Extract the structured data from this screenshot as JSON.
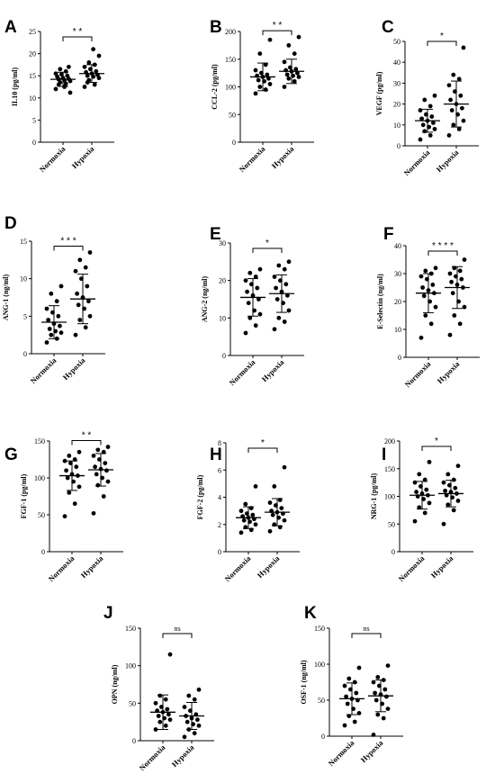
{
  "chart_data": [
    {
      "panel": "A",
      "type": "scatter",
      "ylabel": "IL10 (pg/ml)",
      "ylim": [
        0,
        25
      ],
      "yticks": [
        0,
        5,
        10,
        15,
        20,
        25
      ],
      "categories": [
        "Normoxia",
        "Hypoxia"
      ],
      "significance": "* *",
      "groups": [
        {
          "name": "Normoxia",
          "mean": 14.2,
          "sd": 1.6,
          "values": [
            12.0,
            13.2,
            13.5,
            13.8,
            14.0,
            14.2,
            14.3,
            14.5,
            14.8,
            15.0,
            15.3,
            15.5,
            16.0,
            16.5,
            11.2,
            12.5,
            13.0,
            17.0
          ]
        },
        {
          "name": "Hypoxia",
          "mean": 15.5,
          "sd": 2.0,
          "values": [
            12.5,
            13.0,
            14.0,
            14.5,
            14.8,
            15.0,
            15.2,
            15.5,
            15.8,
            16.0,
            16.5,
            17.0,
            17.5,
            18.0,
            19.5,
            21.0,
            13.5
          ]
        }
      ]
    },
    {
      "panel": "B",
      "type": "scatter",
      "ylabel": "CCL-2 (pg/ml)",
      "ylim": [
        0,
        200
      ],
      "yticks": [
        0,
        50,
        100,
        150,
        200
      ],
      "categories": [
        "Normoxia",
        "Hypoxia"
      ],
      "significance": "* *",
      "groups": [
        {
          "name": "Normoxia",
          "mean": 118,
          "sd": 25,
          "values": [
            88,
            95,
            100,
            105,
            110,
            112,
            115,
            118,
            120,
            122,
            125,
            130,
            140,
            160,
            185
          ]
        },
        {
          "name": "Hypoxia",
          "mean": 128,
          "sd": 22,
          "values": [
            100,
            110,
            115,
            118,
            120,
            122,
            125,
            128,
            130,
            132,
            135,
            145,
            160,
            175,
            190
          ]
        }
      ]
    },
    {
      "panel": "C",
      "type": "scatter",
      "ylabel": "VEGF (pg/ml)",
      "ylim": [
        0,
        50
      ],
      "yticks": [
        0,
        10,
        20,
        30,
        40,
        50
      ],
      "categories": [
        "Normoxia",
        "Hypoxia"
      ],
      "significance": "*",
      "groups": [
        {
          "name": "Normoxia",
          "mean": 12,
          "sd": 5.5,
          "values": [
            3,
            5,
            7,
            8,
            9,
            10,
            11,
            12,
            13,
            14,
            15,
            17,
            19,
            22,
            24
          ]
        },
        {
          "name": "Hypoxia",
          "mean": 20,
          "sd": 11,
          "values": [
            5,
            8,
            10,
            12,
            15,
            17,
            18,
            20,
            22,
            24,
            26,
            29,
            32,
            34,
            47
          ]
        }
      ]
    },
    {
      "panel": "D",
      "type": "scatter",
      "ylabel": "ANG-1 (ng/ml)",
      "ylim": [
        0,
        15
      ],
      "yticks": [
        0,
        5,
        10,
        15
      ],
      "categories": [
        "Normoxia",
        "Hypoxia"
      ],
      "significance": "* * *",
      "groups": [
        {
          "name": "Normoxia",
          "mean": 4.2,
          "sd": 2.2,
          "values": [
            1.5,
            2.0,
            2.5,
            2.8,
            3.0,
            3.3,
            3.7,
            4.0,
            4.5,
            5.0,
            5.5,
            6.0,
            7.0,
            8.0,
            9.0
          ]
        },
        {
          "name": "Hypoxia",
          "mean": 7.3,
          "sd": 3.3,
          "values": [
            2.5,
            3.5,
            4.5,
            5.0,
            6.0,
            6.5,
            7.0,
            7.5,
            8.0,
            9.0,
            10.0,
            11.0,
            11.5,
            12.5,
            13.5
          ]
        }
      ]
    },
    {
      "panel": "E",
      "type": "scatter",
      "ylabel": "ANG-2 (ng/ml)",
      "ylim": [
        0,
        30
      ],
      "yticks": [
        0,
        10,
        20,
        30
      ],
      "categories": [
        "Normoxia",
        "Hypoxia"
      ],
      "significance": "*",
      "groups": [
        {
          "name": "Normoxia",
          "mean": 15.5,
          "sd": 5,
          "values": [
            6,
            8,
            10,
            11,
            12,
            14,
            15,
            16,
            17,
            18,
            19,
            20,
            21,
            22,
            23
          ]
        },
        {
          "name": "Hypoxia",
          "mean": 16.5,
          "sd": 5,
          "values": [
            7,
            9,
            10,
            12,
            14,
            15,
            16,
            17,
            18,
            19,
            20,
            21,
            23,
            24,
            25
          ]
        }
      ]
    },
    {
      "panel": "F",
      "type": "scatter",
      "ylabel": "E-Selectin (ng/ml)",
      "ylim": [
        0,
        40
      ],
      "yticks": [
        0,
        10,
        20,
        30,
        40
      ],
      "categories": [
        "Normoxia",
        "Hypoxia"
      ],
      "significance": "* * * *",
      "groups": [
        {
          "name": "Normoxia",
          "mean": 23,
          "sd": 7,
          "values": [
            7,
            12,
            15,
            18,
            20,
            22,
            23,
            24,
            25,
            26,
            28,
            29,
            30,
            31,
            32
          ]
        },
        {
          "name": "Hypoxia",
          "mean": 25,
          "sd": 7.5,
          "values": [
            8,
            12,
            15,
            18,
            20,
            23,
            25,
            26,
            27,
            28,
            29,
            30,
            31,
            32,
            35
          ]
        }
      ]
    },
    {
      "panel": "G",
      "type": "scatter",
      "ylabel": "FGF-1 (pg/ml)",
      "ylim": [
        0,
        150
      ],
      "yticks": [
        0,
        50,
        100,
        150
      ],
      "categories": [
        "Normoxia",
        "Hypoxia"
      ],
      "significance": "* *",
      "groups": [
        {
          "name": "Normoxia",
          "mean": 103,
          "sd": 20,
          "values": [
            48,
            65,
            80,
            88,
            95,
            100,
            103,
            105,
            110,
            115,
            120,
            123,
            125,
            130,
            135
          ]
        },
        {
          "name": "Hypoxia",
          "mean": 111,
          "sd": 22,
          "values": [
            52,
            75,
            90,
            95,
            100,
            105,
            110,
            112,
            115,
            120,
            125,
            130,
            135,
            138,
            142
          ]
        }
      ]
    },
    {
      "panel": "H",
      "type": "scatter",
      "ylabel": "FGF-2 (pg/ml)",
      "ylim": [
        0,
        8
      ],
      "yticks": [
        0,
        2,
        4,
        6,
        8
      ],
      "categories": [
        "Normoxia",
        "Hypoxia"
      ],
      "significance": "*",
      "groups": [
        {
          "name": "Normoxia",
          "mean": 2.5,
          "sd": 0.8,
          "values": [
            1.4,
            1.6,
            1.8,
            2.0,
            2.2,
            2.3,
            2.4,
            2.5,
            2.6,
            2.7,
            2.8,
            3.0,
            3.2,
            3.5,
            4.8
          ]
        },
        {
          "name": "Hypoxia",
          "mean": 2.9,
          "sd": 1.0,
          "values": [
            1.5,
            1.8,
            2.0,
            2.3,
            2.5,
            2.7,
            2.8,
            2.9,
            3.0,
            3.2,
            3.4,
            3.6,
            3.8,
            4.8,
            6.2
          ]
        }
      ]
    },
    {
      "panel": "I",
      "type": "scatter",
      "ylabel": "NRG-1 (pg/ml)",
      "ylim": [
        0,
        200
      ],
      "yticks": [
        0,
        50,
        100,
        150,
        200
      ],
      "categories": [
        "Normoxia",
        "Hypoxia"
      ],
      "significance": "*",
      "groups": [
        {
          "name": "Normoxia",
          "mean": 102,
          "sd": 25,
          "values": [
            55,
            70,
            80,
            88,
            95,
            100,
            102,
            105,
            108,
            112,
            118,
            125,
            130,
            140,
            162
          ]
        },
        {
          "name": "Hypoxia",
          "mean": 105,
          "sd": 24,
          "values": [
            50,
            75,
            85,
            92,
            98,
            102,
            105,
            108,
            110,
            115,
            120,
            125,
            130,
            140,
            155
          ]
        }
      ]
    },
    {
      "panel": "J",
      "type": "scatter",
      "ylabel": "OPN (ng/ml)",
      "ylim": [
        0,
        150
      ],
      "yticks": [
        0,
        50,
        100,
        150
      ],
      "categories": [
        "Normoxia",
        "Hypoxia"
      ],
      "significance": "ns",
      "groups": [
        {
          "name": "Normoxia",
          "mean": 38,
          "sd": 23,
          "values": [
            15,
            20,
            25,
            28,
            30,
            33,
            35,
            38,
            40,
            42,
            45,
            50,
            55,
            60,
            115
          ]
        },
        {
          "name": "Hypoxia",
          "mean": 33,
          "sd": 18,
          "values": [
            5,
            10,
            15,
            20,
            22,
            25,
            28,
            30,
            33,
            35,
            40,
            45,
            55,
            60,
            68
          ]
        }
      ]
    },
    {
      "panel": "K",
      "type": "scatter",
      "ylabel": "OSF-1 (ng/ml)",
      "ylim": [
        0,
        150
      ],
      "yticks": [
        0,
        50,
        100,
        150
      ],
      "categories": [
        "Normoxia",
        "Hypoxia"
      ],
      "significance": "ns",
      "groups": [
        {
          "name": "Normoxia",
          "mean": 52,
          "sd": 22,
          "values": [
            15,
            20,
            28,
            32,
            38,
            45,
            50,
            52,
            55,
            60,
            65,
            70,
            75,
            80,
            95
          ]
        },
        {
          "name": "Hypoxia",
          "mean": 56,
          "sd": 22,
          "values": [
            2,
            25,
            30,
            38,
            45,
            50,
            55,
            58,
            60,
            65,
            70,
            75,
            78,
            82,
            98
          ]
        }
      ]
    }
  ]
}
